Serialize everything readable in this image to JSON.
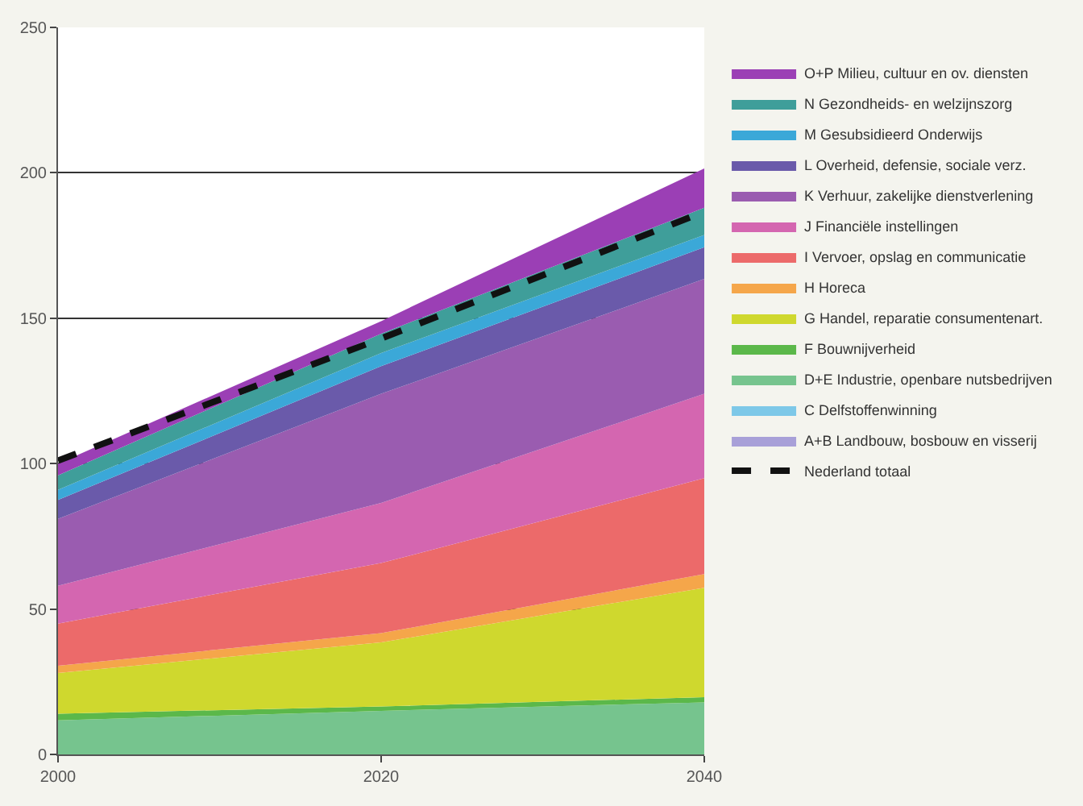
{
  "chart_data": {
    "type": "area",
    "stacked": true,
    "x": [
      2000,
      2020,
      2040
    ],
    "xlim": [
      2000,
      2040
    ],
    "xticks": [
      2000,
      2020,
      2040
    ],
    "ylim": [
      0,
      250
    ],
    "yticks": [
      0,
      50,
      100,
      150,
      200,
      250
    ],
    "grid": "y",
    "legend": "right",
    "series": [
      {
        "name": "A+B Landbouw, bosbouw en visserij",
        "color": "#a8a0d8",
        "values": [
          null,
          null,
          null
        ]
      },
      {
        "name": "C Delfstoffenwinning",
        "color": "#7dc8e8",
        "values": [
          null,
          null,
          null
        ]
      },
      {
        "name": "D+E Industrie, openbare nutsbedrijven",
        "color": "#76c48e",
        "values": [
          11.7,
          15,
          17.9
        ]
      },
      {
        "name": "F Bouwnijverheid",
        "color": "#5bb84a",
        "values": [
          2.3,
          1.5,
          1.8
        ]
      },
      {
        "name": "G Handel, reparatie consumentenart.",
        "color": "#cfd82e",
        "values": [
          14,
          22,
          37.6
        ]
      },
      {
        "name": "H Horeca",
        "color": "#f5a64a",
        "values": [
          2.5,
          3.2,
          4.7
        ]
      },
      {
        "name": "I Vervoer, opslag en communicatie",
        "color": "#ec6a6a",
        "values": [
          14.5,
          24.1,
          33
        ]
      },
      {
        "name": "J Financiële instellingen",
        "color": "#d466b0",
        "values": [
          13,
          20.7,
          29
        ]
      },
      {
        "name": "K Verhuur, zakelijke dienstverlening",
        "color": "#9a5cb0",
        "values": [
          23,
          37.5,
          39.5
        ]
      },
      {
        "name": "L Overheid, defensie, sociale verz.",
        "color": "#6a5aaa",
        "values": [
          6.5,
          9.5,
          10.9
        ]
      },
      {
        "name": "M Gesubsidieerd Onderwijs",
        "color": "#3ba8d8",
        "values": [
          3.5,
          4.5,
          4.2
        ]
      },
      {
        "name": "N Gezondheids- en welzijnszorg",
        "color": "#3f9e9a",
        "values": [
          5,
          6.7,
          9.4
        ]
      },
      {
        "name": "O+P Milieu, cultuur en ov. diensten",
        "color": "#9b3fb5",
        "values": [
          4,
          4.3,
          13.5
        ]
      },
      {
        "name": "Nederland totaal",
        "type": "line",
        "line_style": "dashed",
        "color": "#111111",
        "values": [
          101,
          143,
          186.6
        ]
      }
    ]
  }
}
